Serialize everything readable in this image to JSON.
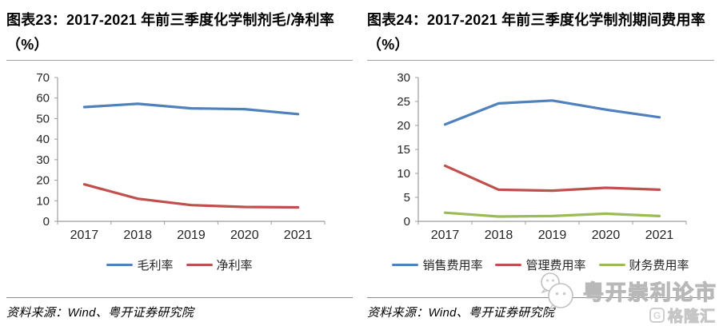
{
  "panels": [
    {
      "title_line1": "图表23：2017-2021 年前三季度化学制剂毛/净利率",
      "title_line2": "（%）",
      "source_label": "资料来源：Wind、粤开证券研究院"
    },
    {
      "title_line1": "图表24：2017-2021 年前三季度化学制剂期间费用率",
      "title_line2": "（%）",
      "source_label": "资料来源：Wind、粤开证券研究院"
    }
  ],
  "chart_data": [
    {
      "type": "line",
      "title": "图表23：2017-2021 年前三季度化学制剂毛/净利率（%）",
      "categories": [
        "2017",
        "2018",
        "2019",
        "2020",
        "2021"
      ],
      "series": [
        {
          "name": "毛利率",
          "color": "#4F81BD",
          "values": [
            55.6,
            57.2,
            55.0,
            54.6,
            52.2
          ]
        },
        {
          "name": "净利率",
          "color": "#C0504D",
          "values": [
            18.0,
            11.0,
            7.9,
            7.0,
            6.8
          ]
        }
      ],
      "xlabel": "",
      "ylabel": "",
      "ylim": [
        0,
        70
      ],
      "ytick_step": 10,
      "grid": false,
      "legend_position": "bottom"
    },
    {
      "type": "line",
      "title": "图表24：2017-2021 年前三季度化学制剂期间费用率（%）",
      "categories": [
        "2017",
        "2018",
        "2019",
        "2020",
        "2021"
      ],
      "series": [
        {
          "name": "销售费用率",
          "color": "#4F81BD",
          "values": [
            20.2,
            24.6,
            25.2,
            23.3,
            21.7
          ]
        },
        {
          "name": "管理费用率",
          "color": "#C0504D",
          "values": [
            11.6,
            6.6,
            6.4,
            7.0,
            6.6
          ]
        },
        {
          "name": "财务费用率",
          "color": "#9BBB59",
          "values": [
            1.8,
            1.0,
            1.1,
            1.6,
            1.1
          ]
        }
      ],
      "xlabel": "",
      "ylabel": "",
      "ylim": [
        0,
        30
      ],
      "ytick_step": 5,
      "grid": false,
      "legend_position": "bottom"
    }
  ],
  "watermark": {
    "brand_text": "粤开崇利论市",
    "wechat_icon": "wechat-icon",
    "logo_letter": "G",
    "logo_text": "格隆汇"
  },
  "colors": {
    "series_blue": "#4F81BD",
    "series_red": "#C0504D",
    "series_green": "#9BBB59",
    "axis": "#9c9c9c",
    "axis_text": "#262626",
    "title_rule": "#a3a3a3",
    "source_rule": "#8c8c8c",
    "watermark_gray": "#bfbfbf"
  }
}
